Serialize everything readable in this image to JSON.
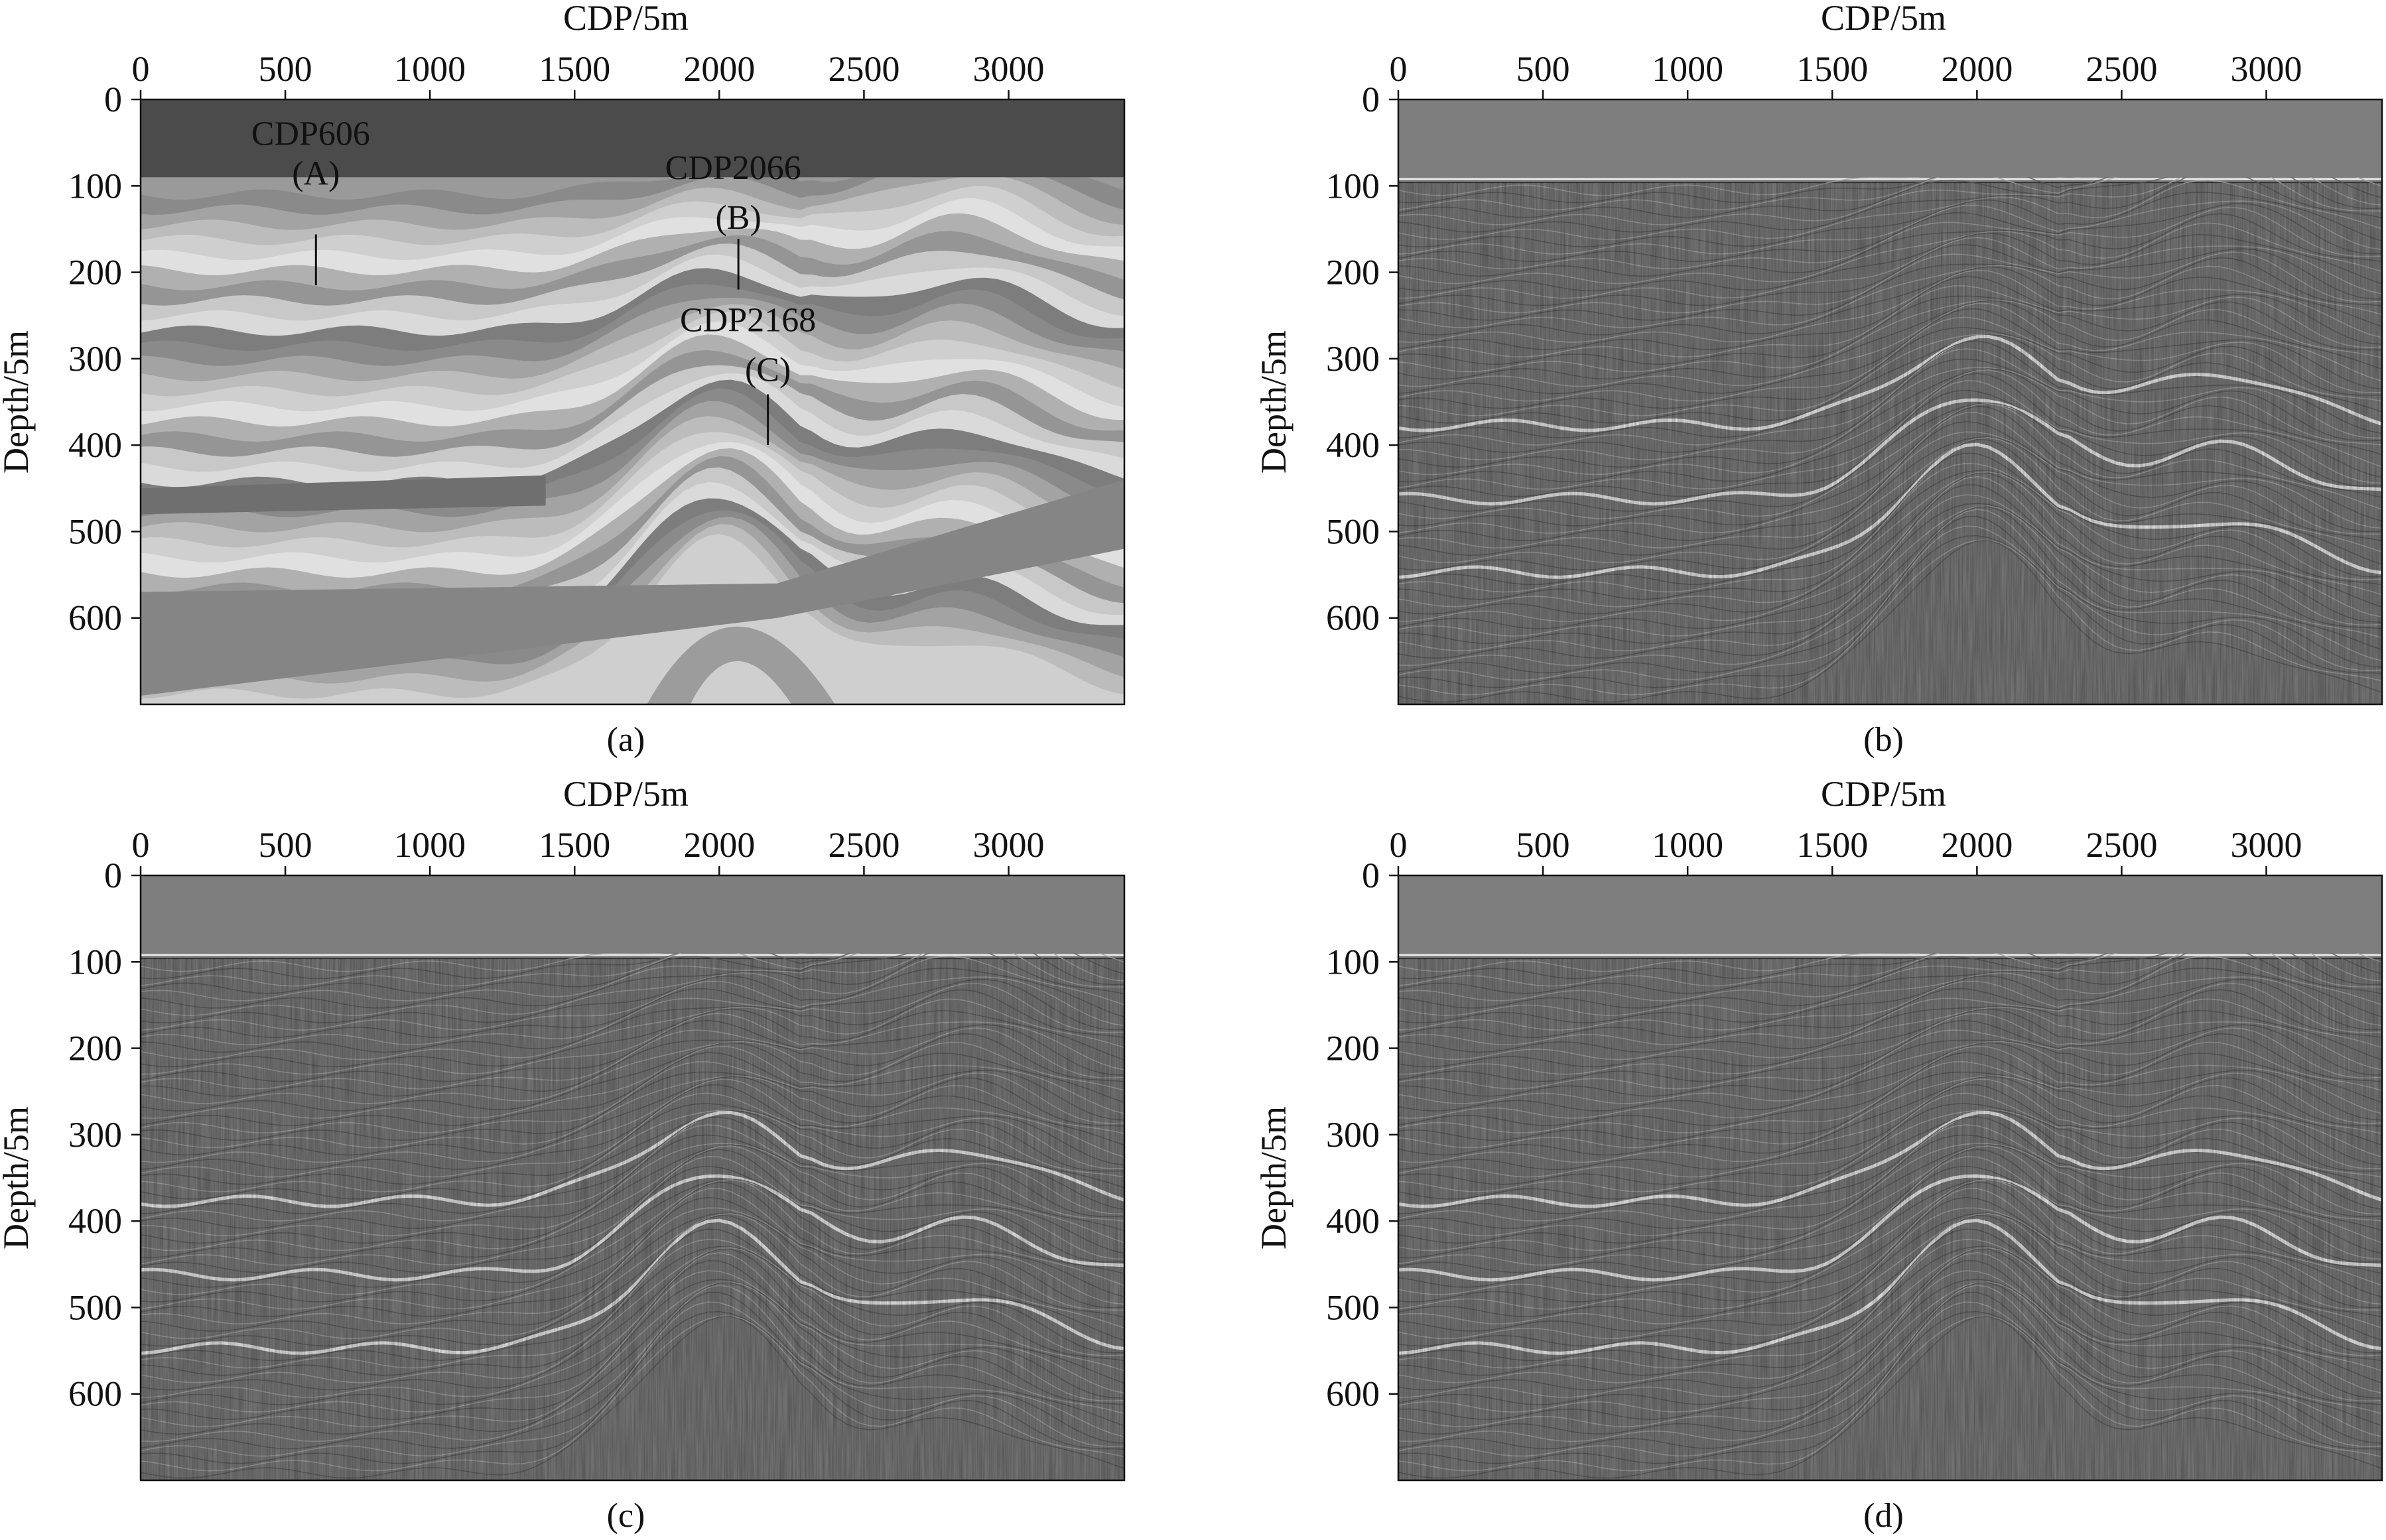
{
  "chart_data": [
    {
      "id": "a",
      "type": "heatmap",
      "title": "",
      "caption": "(a)",
      "xlabel": "CDP/5m",
      "ylabel": "Depth/5m",
      "xlim": [
        0,
        3400
      ],
      "ylim": [
        0,
        700
      ],
      "y_inverted": true,
      "xticks": [
        "0",
        "500",
        "1000",
        "1500",
        "2000",
        "2500",
        "3000"
      ],
      "yticks": [
        "0",
        "100",
        "200",
        "300",
        "400",
        "500",
        "600"
      ],
      "content": "velocity model",
      "annotations": [
        {
          "label": "CDP606",
          "sub": "(A)",
          "x": 606,
          "y_top": 160,
          "y_bottom": 215
        },
        {
          "label": "CDP2066",
          "sub": "(B)",
          "x": 2066,
          "y_top": 165,
          "y_bottom": 220
        },
        {
          "label": "CDP2168",
          "sub": "(C)",
          "x": 2168,
          "y_top": 345,
          "y_bottom": 400
        }
      ]
    },
    {
      "id": "b",
      "type": "heatmap",
      "title": "",
      "caption": "(b)",
      "xlabel": "CDP/5m",
      "ylabel": "Depth/5m",
      "xlim": [
        0,
        3400
      ],
      "ylim": [
        0,
        700
      ],
      "y_inverted": true,
      "xticks": [
        "0",
        "500",
        "1000",
        "1500",
        "2000",
        "2500",
        "3000"
      ],
      "yticks": [
        "0",
        "100",
        "200",
        "300",
        "400",
        "500",
        "600"
      ],
      "content": "migrated image"
    },
    {
      "id": "c",
      "type": "heatmap",
      "title": "",
      "caption": "(c)",
      "xlabel": "CDP/5m",
      "ylabel": "Depth/5m",
      "xlim": [
        0,
        3400
      ],
      "ylim": [
        0,
        700
      ],
      "y_inverted": true,
      "xticks": [
        "0",
        "500",
        "1000",
        "1500",
        "2000",
        "2500",
        "3000"
      ],
      "yticks": [
        "0",
        "100",
        "200",
        "300",
        "400",
        "500",
        "600"
      ],
      "content": "migrated image"
    },
    {
      "id": "d",
      "type": "heatmap",
      "title": "",
      "caption": "(d)",
      "xlabel": "CDP/5m",
      "ylabel": "Depth/5m",
      "xlim": [
        0,
        3400
      ],
      "ylim": [
        0,
        700
      ],
      "y_inverted": true,
      "xticks": [
        "0",
        "500",
        "1000",
        "1500",
        "2000",
        "2500",
        "3000"
      ],
      "yticks": [
        "0",
        "100",
        "200",
        "300",
        "400",
        "500",
        "600"
      ],
      "content": "migrated image"
    }
  ]
}
